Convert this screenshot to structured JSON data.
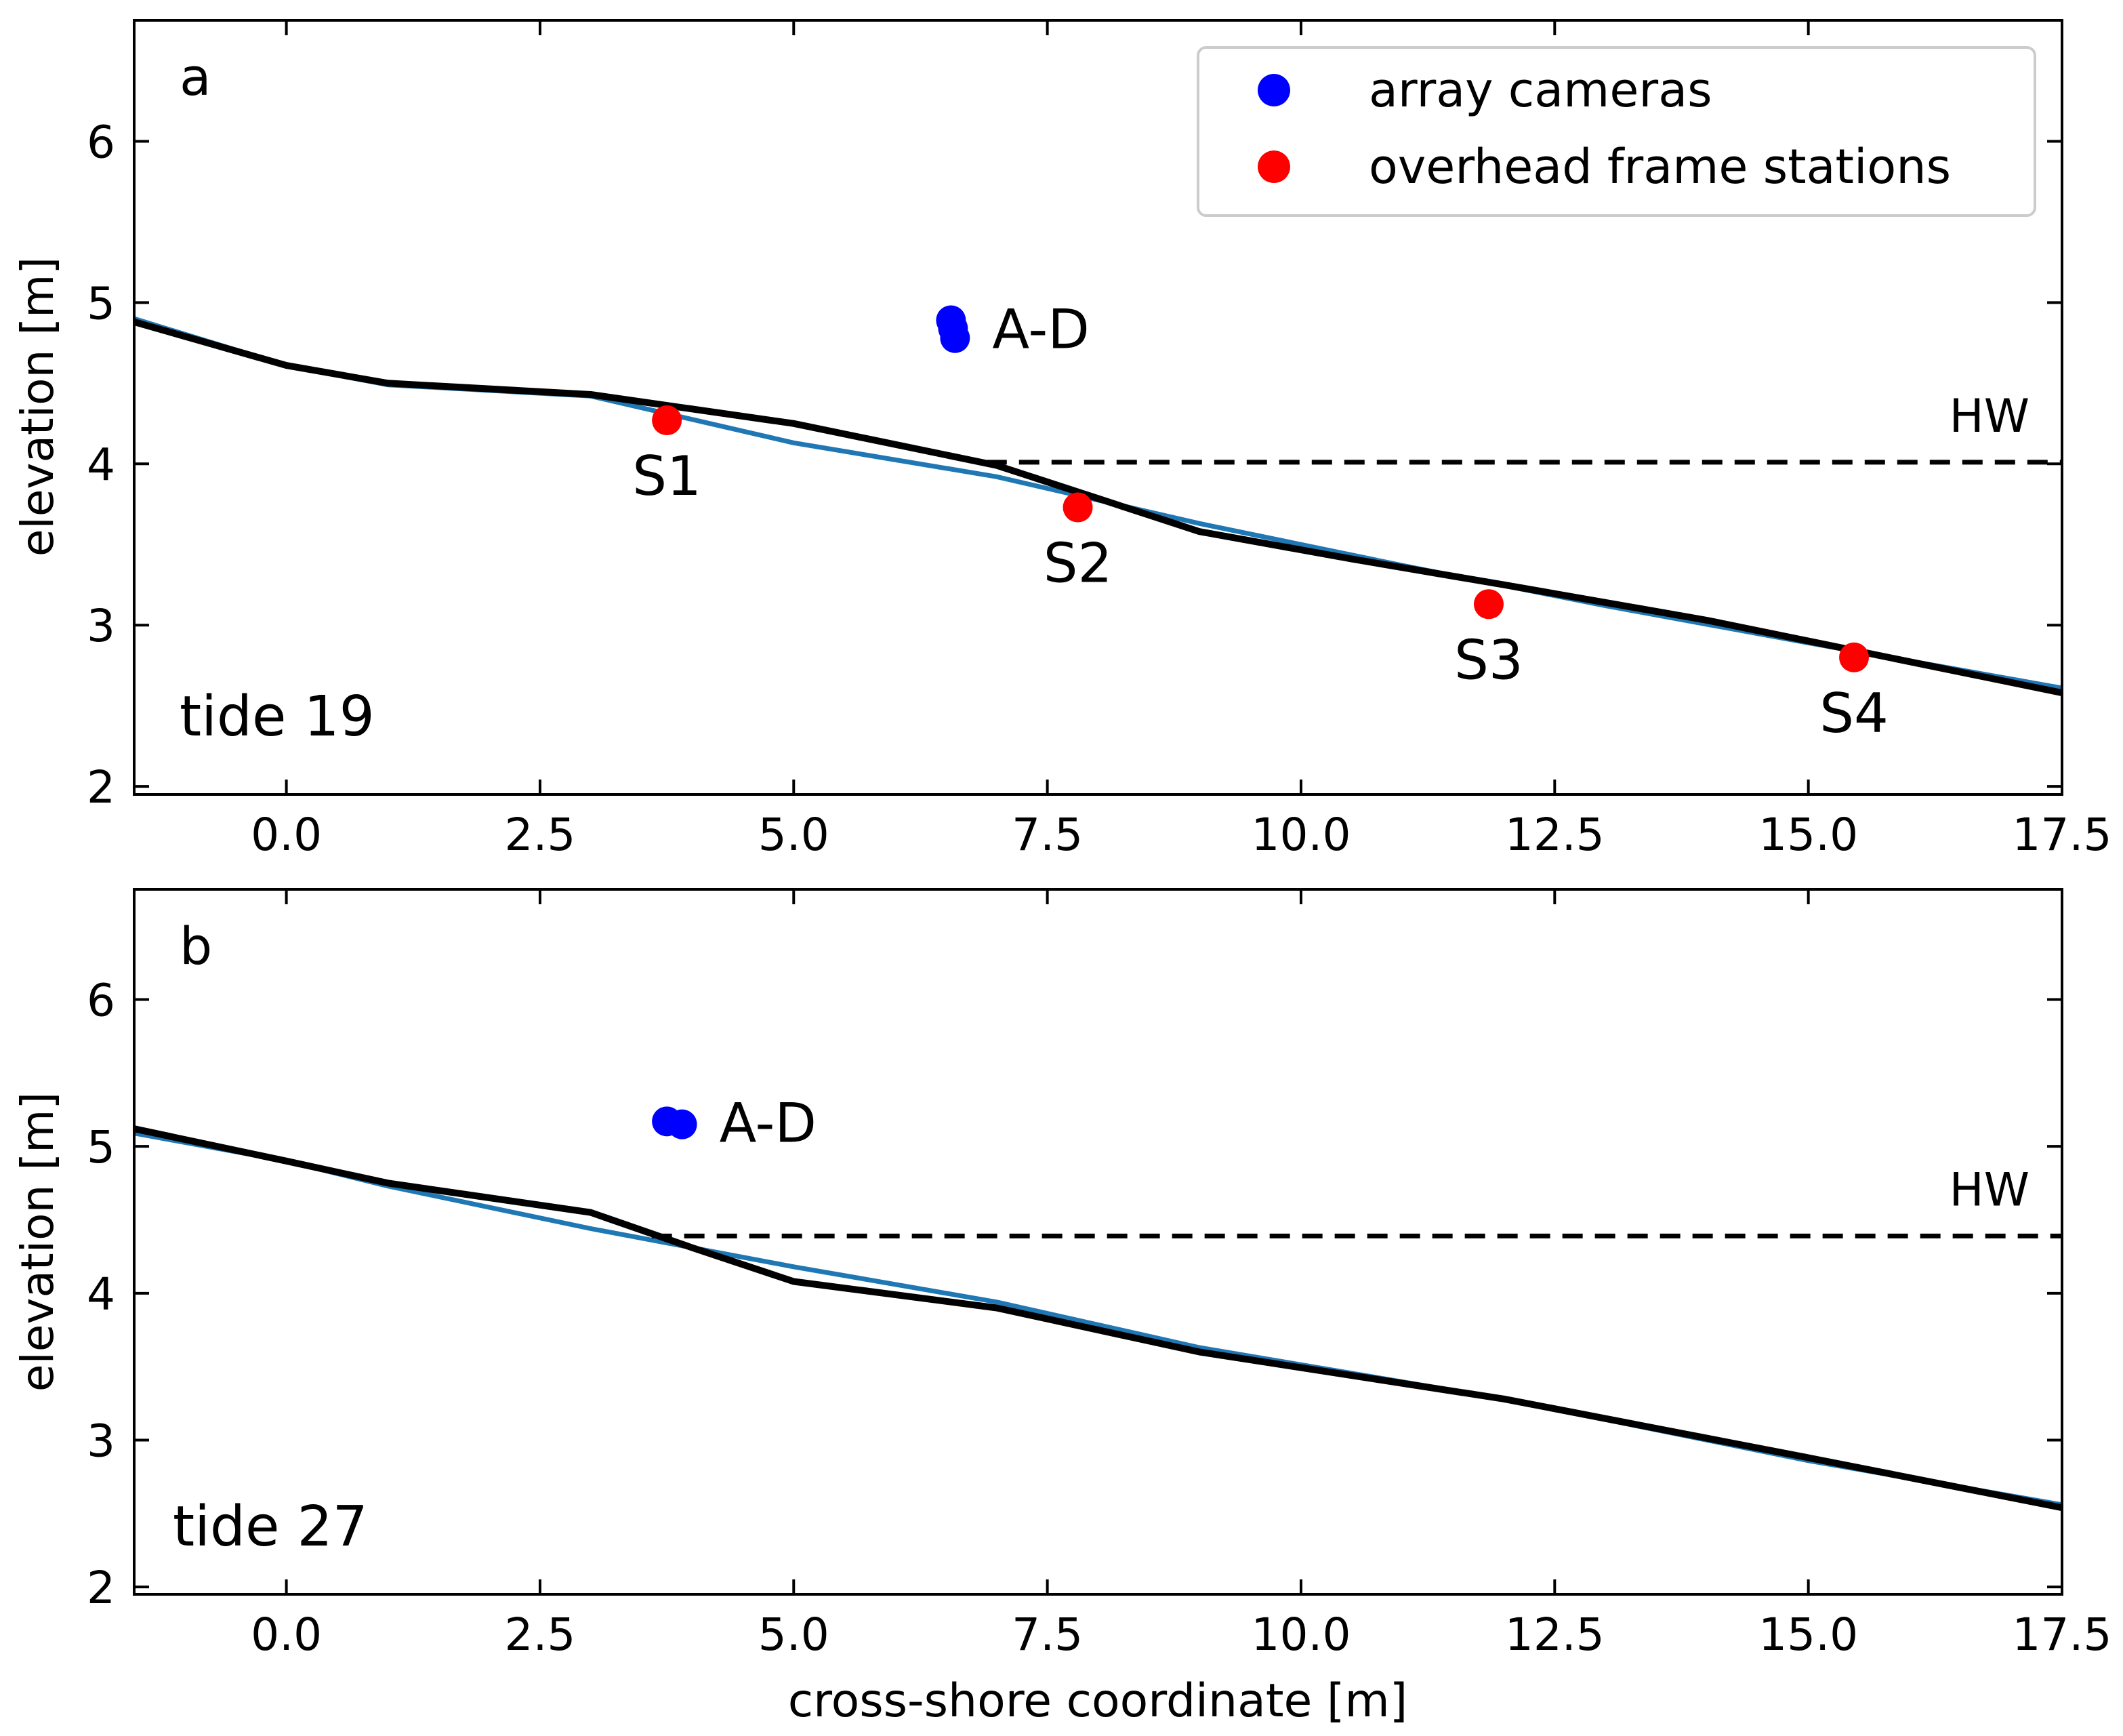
{
  "chart_data": [
    {
      "type": "line",
      "panel_label": "a",
      "tide_label": "tide 19",
      "xlim": [
        -1.5,
        17.5
      ],
      "ylim": [
        1.95,
        6.75
      ],
      "xticks": [
        0.0,
        2.5,
        5.0,
        7.5,
        10.0,
        12.5,
        15.0,
        17.5
      ],
      "xtick_labels": [
        "0.0",
        "2.5",
        "5.0",
        "7.5",
        "10.0",
        "12.5",
        "15.0",
        "17.5"
      ],
      "yticks": [
        2,
        3,
        4,
        5,
        6
      ],
      "ytick_labels": [
        "2",
        "3",
        "4",
        "5",
        "6"
      ],
      "ylabel": "elevation [m]",
      "xlabel": "",
      "series": [
        {
          "name": "profile-blue",
          "color": "#1f77b4",
          "x": [
            -1.5,
            0.0,
            1.0,
            3.0,
            5.0,
            7.0,
            9.0,
            11.0,
            13.0,
            15.0,
            17.5
          ],
          "y": [
            4.9,
            4.61,
            4.49,
            4.42,
            4.13,
            3.92,
            3.63,
            3.37,
            3.12,
            2.89,
            2.61
          ]
        },
        {
          "name": "profile-black",
          "color": "#000000",
          "x": [
            -1.5,
            0.0,
            1.0,
            3.0,
            5.0,
            7.0,
            9.0,
            10.5,
            12.0,
            14.0,
            17.5
          ],
          "y": [
            4.88,
            4.61,
            4.5,
            4.43,
            4.25,
            3.99,
            3.58,
            3.41,
            3.25,
            3.03,
            2.58
          ]
        }
      ],
      "hw": {
        "label": "HW",
        "y": 4.01,
        "x_start": 6.9,
        "x_end": 17.5
      },
      "cameras": {
        "label": "A-D",
        "color": "#0000ff",
        "points": [
          {
            "x": 6.55,
            "y": 4.89
          },
          {
            "x": 6.57,
            "y": 4.84
          },
          {
            "x": 6.59,
            "y": 4.78
          }
        ]
      },
      "stations": {
        "color": "#ff0000",
        "points": [
          {
            "label": "S1",
            "x": 3.75,
            "y": 4.27
          },
          {
            "label": "S2",
            "x": 7.8,
            "y": 3.73
          },
          {
            "label": "S3",
            "x": 11.85,
            "y": 3.13
          },
          {
            "label": "S4",
            "x": 15.45,
            "y": 2.8
          }
        ]
      },
      "legend": {
        "position": "top-right",
        "entries": [
          {
            "label": "array cameras",
            "color": "#0000ff"
          },
          {
            "label": "overhead frame stations",
            "color": "#ff0000"
          }
        ]
      }
    },
    {
      "type": "line",
      "panel_label": "b",
      "tide_label": "tide 27",
      "xlim": [
        -1.5,
        17.5
      ],
      "ylim": [
        1.95,
        6.75
      ],
      "xticks": [
        0.0,
        2.5,
        5.0,
        7.5,
        10.0,
        12.5,
        15.0,
        17.5
      ],
      "xtick_labels": [
        "0.0",
        "2.5",
        "5.0",
        "7.5",
        "10.0",
        "12.5",
        "15.0",
        "17.5"
      ],
      "yticks": [
        2,
        3,
        4,
        5,
        6
      ],
      "ytick_labels": [
        "2",
        "3",
        "4",
        "5",
        "6"
      ],
      "ylabel": "elevation [m]",
      "xlabel": "cross-shore coordinate [m]",
      "series": [
        {
          "name": "profile-blue",
          "color": "#1f77b4",
          "x": [
            -1.5,
            0.0,
            1.0,
            3.0,
            5.0,
            7.0,
            9.0,
            12.0,
            15.0,
            17.5
          ],
          "y": [
            5.09,
            4.9,
            4.73,
            4.44,
            4.18,
            3.94,
            3.63,
            3.28,
            2.86,
            2.56
          ]
        },
        {
          "name": "profile-black",
          "color": "#000000",
          "x": [
            -1.5,
            0.0,
            1.0,
            3.0,
            4.0,
            5.0,
            7.0,
            9.0,
            12.0,
            15.0,
            17.5
          ],
          "y": [
            5.12,
            4.9,
            4.75,
            4.55,
            4.31,
            4.08,
            3.9,
            3.6,
            3.28,
            2.88,
            2.54
          ]
        }
      ],
      "hw": {
        "label": "HW",
        "y": 4.39,
        "x_start": 3.6,
        "x_end": 17.5
      },
      "cameras": {
        "label": "A-D",
        "color": "#0000ff",
        "points": [
          {
            "x": 3.75,
            "y": 5.17
          },
          {
            "x": 3.9,
            "y": 5.15
          }
        ]
      }
    }
  ]
}
